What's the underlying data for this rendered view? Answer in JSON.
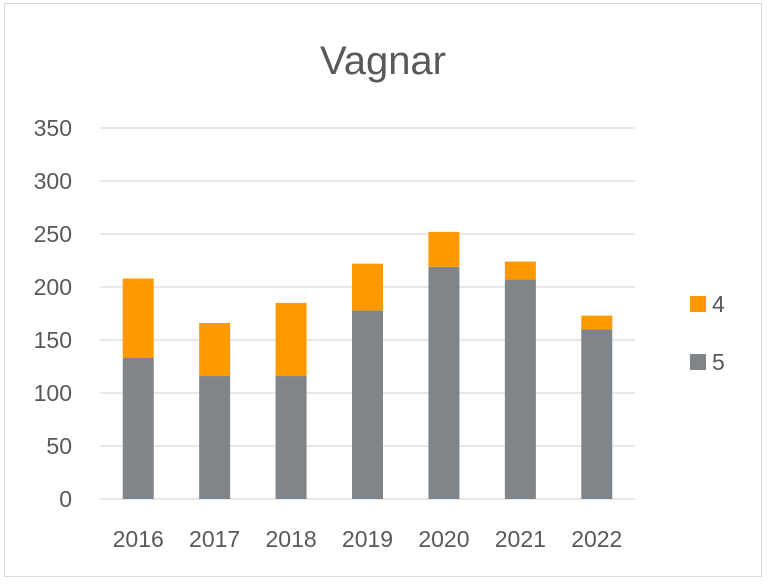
{
  "chart_data": {
    "type": "bar",
    "stacked": true,
    "title": "Vagnar",
    "categories": [
      "2016",
      "2017",
      "2018",
      "2019",
      "2020",
      "2021",
      "2022"
    ],
    "series": [
      {
        "name": "5",
        "color": "#808589",
        "values": [
          133,
          116,
          116,
          178,
          219,
          207,
          160
        ]
      },
      {
        "name": "4",
        "color": "#ff9900",
        "values": [
          75,
          50,
          69,
          44,
          33,
          17,
          13
        ]
      }
    ],
    "ylim": [
      0,
      350
    ],
    "yticks": [
      "0",
      "50",
      "100",
      "150",
      "200",
      "250",
      "300",
      "350"
    ],
    "grid": true,
    "legend_position": "right",
    "legend_entries": [
      "4",
      "5"
    ]
  }
}
